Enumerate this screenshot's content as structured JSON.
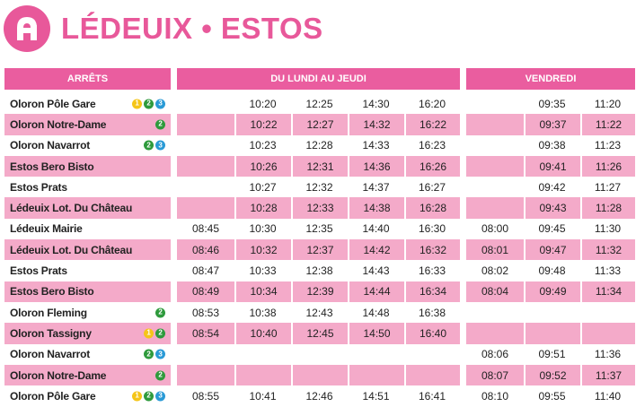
{
  "header": {
    "title": "LÉDEUIX • ESTOS"
  },
  "columns": {
    "stops": "ARRÊTS",
    "mon_thu": "DU LUNDI AU JEUDI",
    "fri": "VENDREDI"
  },
  "colors": {
    "accent": "#ea5d9f",
    "row_pink": "#f4aac9",
    "line1": "#f5c518",
    "line2": "#2e9a3c",
    "line3": "#2a9ad6"
  },
  "rows": [
    {
      "stop": "Oloron Pôle Gare",
      "lines": [
        "1",
        "2",
        "3"
      ],
      "mt": [
        "",
        "10:20",
        "12:25",
        "14:30",
        "16:20"
      ],
      "fr": [
        "",
        "09:35",
        "11:20"
      ]
    },
    {
      "stop": "Oloron Notre-Dame",
      "lines": [
        "2"
      ],
      "mt": [
        "",
        "10:22",
        "12:27",
        "14:32",
        "16:22"
      ],
      "fr": [
        "",
        "09:37",
        "11:22"
      ]
    },
    {
      "stop": "Oloron Navarrot",
      "lines": [
        "2",
        "3"
      ],
      "mt": [
        "",
        "10:23",
        "12:28",
        "14:33",
        "16:23"
      ],
      "fr": [
        "",
        "09:38",
        "11:23"
      ]
    },
    {
      "stop": "Estos Bero Bisto",
      "lines": [],
      "mt": [
        "",
        "10:26",
        "12:31",
        "14:36",
        "16:26"
      ],
      "fr": [
        "",
        "09:41",
        "11:26"
      ]
    },
    {
      "stop": "Estos Prats",
      "lines": [],
      "mt": [
        "",
        "10:27",
        "12:32",
        "14:37",
        "16:27"
      ],
      "fr": [
        "",
        "09:42",
        "11:27"
      ]
    },
    {
      "stop": "Lédeuix Lot. Du Château",
      "lines": [],
      "mt": [
        "",
        "10:28",
        "12:33",
        "14:38",
        "16:28"
      ],
      "fr": [
        "",
        "09:43",
        "11:28"
      ]
    },
    {
      "stop": "Lédeuix Mairie",
      "lines": [],
      "mt": [
        "08:45",
        "10:30",
        "12:35",
        "14:40",
        "16:30"
      ],
      "fr": [
        "08:00",
        "09:45",
        "11:30"
      ]
    },
    {
      "stop": "Lédeuix Lot. Du Château",
      "lines": [],
      "mt": [
        "08:46",
        "10:32",
        "12:37",
        "14:42",
        "16:32"
      ],
      "fr": [
        "08:01",
        "09:47",
        "11:32"
      ]
    },
    {
      "stop": "Estos Prats",
      "lines": [],
      "mt": [
        "08:47",
        "10:33",
        "12:38",
        "14:43",
        "16:33"
      ],
      "fr": [
        "08:02",
        "09:48",
        "11:33"
      ]
    },
    {
      "stop": "Estos Bero Bisto",
      "lines": [],
      "mt": [
        "08:49",
        "10:34",
        "12:39",
        "14:44",
        "16:34"
      ],
      "fr": [
        "08:04",
        "09:49",
        "11:34"
      ]
    },
    {
      "stop": "Oloron Fleming",
      "lines": [
        "2"
      ],
      "mt": [
        "08:53",
        "10:38",
        "12:43",
        "14:48",
        "16:38"
      ],
      "fr": [
        "",
        "",
        ""
      ]
    },
    {
      "stop": "Oloron Tassigny",
      "lines": [
        "1",
        "2"
      ],
      "mt": [
        "08:54",
        "10:40",
        "12:45",
        "14:50",
        "16:40"
      ],
      "fr": [
        "",
        "",
        ""
      ]
    },
    {
      "stop": "Oloron Navarrot",
      "lines": [
        "2",
        "3"
      ],
      "mt": [
        "",
        "",
        "",
        "",
        ""
      ],
      "fr": [
        "08:06",
        "09:51",
        "11:36"
      ]
    },
    {
      "stop": "Oloron Notre-Dame",
      "lines": [
        "2"
      ],
      "mt": [
        "",
        "",
        "",
        "",
        ""
      ],
      "fr": [
        "08:07",
        "09:52",
        "11:37"
      ]
    },
    {
      "stop": "Oloron Pôle Gare",
      "lines": [
        "1",
        "2",
        "3"
      ],
      "mt": [
        "08:55",
        "10:41",
        "12:46",
        "14:51",
        "16:41"
      ],
      "fr": [
        "08:10",
        "09:55",
        "11:40"
      ]
    }
  ]
}
